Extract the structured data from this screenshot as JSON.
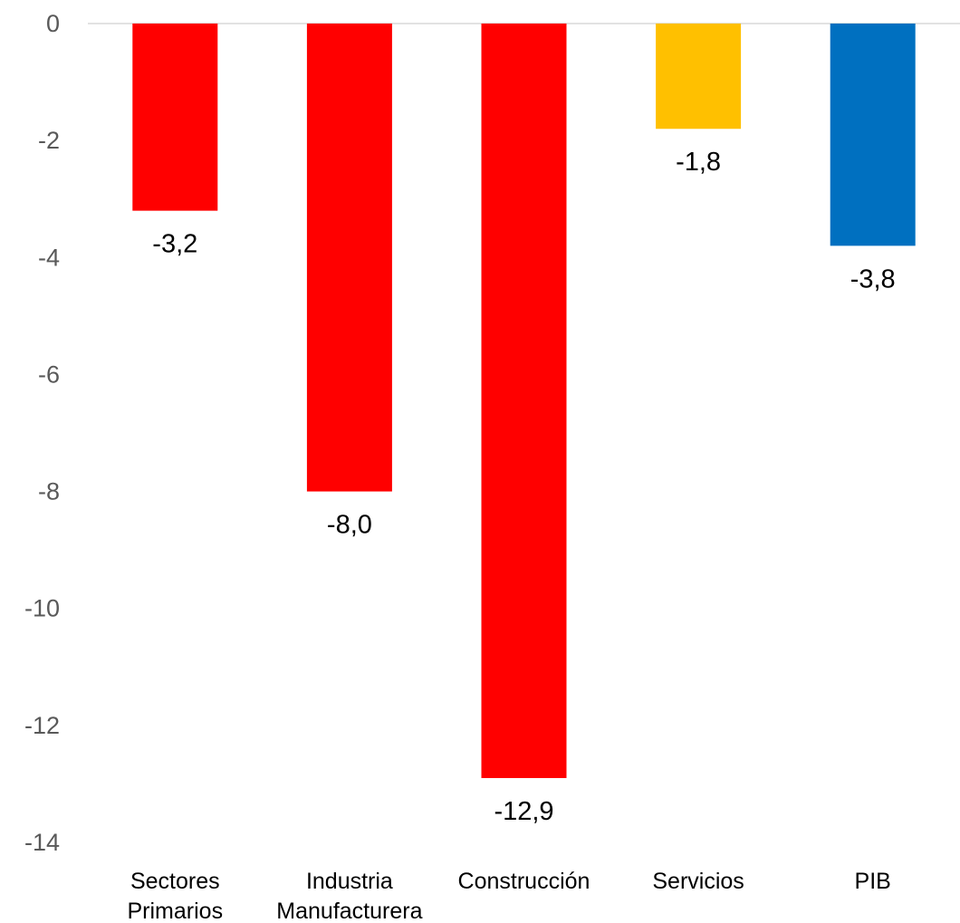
{
  "chart_data": {
    "type": "bar",
    "categories": [
      [
        "Sectores",
        "Primarios"
      ],
      [
        "Industria",
        "Manufacturera"
      ],
      [
        "Construcción"
      ],
      [
        "Servicios"
      ],
      [
        "PIB"
      ]
    ],
    "values": [
      -3.2,
      -8.0,
      -12.9,
      -1.8,
      -3.8
    ],
    "data_labels": [
      "-3,2",
      "-8,0",
      "-12,9",
      "-1,8",
      "-3,8"
    ],
    "bar_colors": [
      "#ff0000",
      "#ff0000",
      "#ff0000",
      "#ffc000",
      "#0070c0"
    ],
    "title": "",
    "xlabel": "",
    "ylabel": "",
    "ylim": [
      -14,
      0
    ],
    "yticks": [
      0,
      -2,
      -4,
      -6,
      -8,
      -10,
      -12,
      -14
    ],
    "grid": false,
    "legend": "none",
    "axis_line_color": "#d9d9d9"
  }
}
